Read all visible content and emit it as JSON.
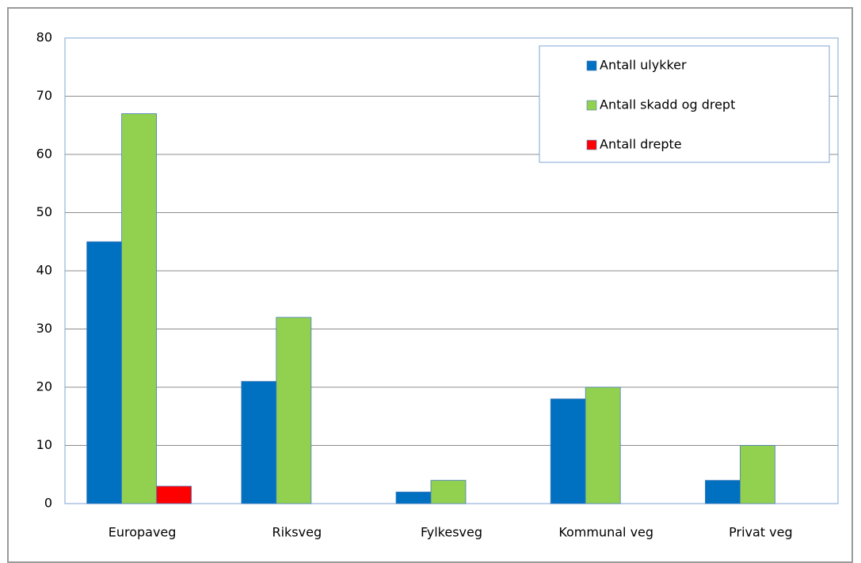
{
  "chart_data": {
    "type": "bar",
    "categories": [
      "Europaveg",
      "Riksveg",
      "Fylkesveg",
      "Kommunal veg",
      "Privat veg"
    ],
    "series": [
      {
        "name": "Antall ulykker",
        "color": "#0070c0",
        "values": [
          45,
          21,
          2,
          18,
          4
        ]
      },
      {
        "name": "Antall skadd og drept",
        "color": "#92d050",
        "values": [
          67,
          32,
          4,
          20,
          10
        ]
      },
      {
        "name": "Antall drepte",
        "color": "#ff0000",
        "values": [
          3,
          0,
          0,
          0,
          0
        ]
      }
    ],
    "ylim": [
      0,
      80
    ],
    "yticks": [
      0,
      10,
      20,
      30,
      40,
      50,
      60,
      70,
      80
    ],
    "grid": true,
    "legend": "top-right"
  }
}
